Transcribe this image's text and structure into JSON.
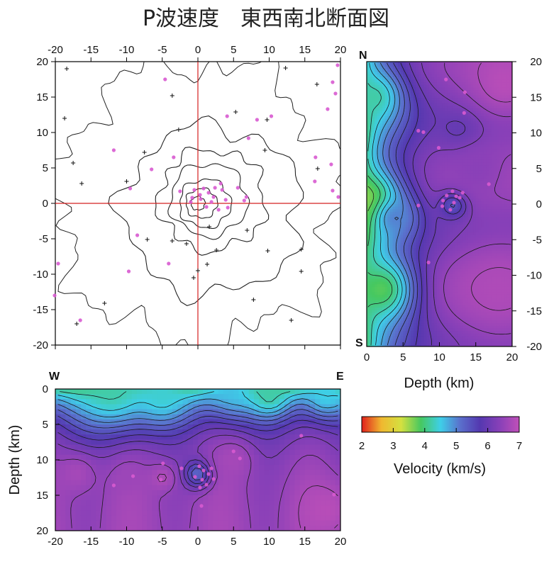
{
  "title": "P波速度　東西南北断面図",
  "colorbar": {
    "label": "Velocity (km/s)",
    "min": 2,
    "max": 7,
    "ticks": [
      "2",
      "3",
      "4",
      "5",
      "6",
      "7"
    ],
    "stops": [
      "#e0201c",
      "#f0b830",
      "#d4e040",
      "#46c860",
      "#3ecfe8",
      "#5a70cc",
      "#5438b0",
      "#8840b8",
      "#c050b8"
    ]
  },
  "chart_data": [
    {
      "type": "map",
      "name": "plan-view",
      "xlim": [
        -20,
        20
      ],
      "ylim": [
        -20,
        20
      ],
      "xticks": [
        "-20",
        "-15",
        "-10",
        "-5",
        "0",
        "5",
        "10",
        "15",
        "20"
      ],
      "yticks": [
        "20",
        "15",
        "10",
        "5",
        "0",
        "-5",
        "-10",
        "-15",
        "-20"
      ],
      "crosshair": {
        "x": 0,
        "y": 0
      },
      "elevation_contours_approx": [
        {
          "cx": 0,
          "cy": 0,
          "r": 1
        },
        {
          "cx": 0.5,
          "cy": 0,
          "r": 2.2
        },
        {
          "cx": 1,
          "cy": 0,
          "r": 3.6
        },
        {
          "cx": 1.5,
          "cy": 0.5,
          "r": 5.4
        },
        {
          "cx": 2,
          "cy": 0.5,
          "r": 7.5
        },
        {
          "cx": 2,
          "cy": -1,
          "r": 12.5
        }
      ],
      "events": [
        [
          0.3,
          1.2
        ],
        [
          0.8,
          2.1
        ],
        [
          -0.5,
          1.9
        ],
        [
          1.5,
          1.5
        ],
        [
          2.2,
          0.9
        ],
        [
          1.9,
          0.2
        ],
        [
          1.2,
          -0.5
        ],
        [
          2.9,
          -0.9
        ],
        [
          0.4,
          0.6
        ],
        [
          -0.8,
          0.8
        ],
        [
          2.4,
          2.2
        ],
        [
          3.4,
          1.9
        ],
        [
          3.9,
          0.5
        ],
        [
          4.2,
          -0.6
        ],
        [
          3.2,
          2.8
        ],
        [
          6.5,
          0.4
        ],
        [
          -2.5,
          1.7
        ],
        [
          -6.5,
          4.8
        ],
        [
          -3.4,
          6.5
        ],
        [
          -9.5,
          2.1
        ],
        [
          -11.8,
          7.5
        ],
        [
          -9.7,
          -9.6
        ],
        [
          -4.1,
          -8.5
        ],
        [
          -8.5,
          -4.5
        ],
        [
          -19.6,
          -8.5
        ],
        [
          -20.1,
          -13
        ],
        [
          -16.5,
          -16.5
        ],
        [
          -4.6,
          17.5
        ],
        [
          4.1,
          12.3
        ],
        [
          7.1,
          9.2
        ],
        [
          8.3,
          11.8
        ],
        [
          10.3,
          12.3
        ],
        [
          16.5,
          6.5
        ],
        [
          16.4,
          3.1
        ],
        [
          18.7,
          5.5
        ],
        [
          18.9,
          1.8
        ],
        [
          19.7,
          0.9
        ],
        [
          18.2,
          13.3
        ],
        [
          19.3,
          15.5
        ],
        [
          19.6,
          19.5
        ],
        [
          18.9,
          17.1
        ],
        [
          6.8,
          0.9
        ],
        [
          5.6,
          2.2
        ],
        [
          -1,
          0.2
        ]
      ],
      "stations": [
        [
          -18.4,
          19
        ],
        [
          -18.7,
          12
        ],
        [
          -17,
          -17
        ],
        [
          -13.1,
          -14.1
        ],
        [
          -3.6,
          -5.3
        ],
        [
          -7.1,
          -5.1
        ],
        [
          -2.7,
          10.4
        ],
        [
          -3.6,
          15.2
        ],
        [
          -10,
          3.1
        ],
        [
          1.3,
          -8.6
        ],
        [
          1.6,
          -3.3
        ],
        [
          2.6,
          -6.6
        ],
        [
          6.9,
          -3.8
        ],
        [
          9.8,
          -6.7
        ],
        [
          7.8,
          -13.6
        ],
        [
          14.5,
          -6.5
        ],
        [
          13.1,
          -16.5
        ],
        [
          5.3,
          12.9
        ],
        [
          9.7,
          11.8
        ],
        [
          9.4,
          7.5
        ],
        [
          16.7,
          16.8
        ],
        [
          16.8,
          4.9
        ],
        [
          14.5,
          -9.6
        ],
        [
          -0.6,
          -10.5
        ],
        [
          -1.6,
          -5.7
        ],
        [
          0,
          -9.5
        ],
        [
          -7.5,
          7.2
        ],
        [
          -17.5,
          5.7
        ],
        [
          12.3,
          19.1
        ],
        [
          -16.3,
          2.8
        ]
      ]
    },
    {
      "type": "heatmap",
      "name": "north-south-section",
      "xlabel": "Depth (km)",
      "xlim": [
        0,
        20
      ],
      "ylim": [
        -20,
        20
      ],
      "xticks": [
        "0",
        "5",
        "10",
        "15",
        "20"
      ],
      "yticks": [
        "20",
        "15",
        "10",
        "5",
        "0",
        "-5",
        "-10",
        "-15",
        "-20"
      ],
      "corner_labels": {
        "top": "N",
        "bottom": "S"
      },
      "velocity_field": [
        {
          "x": 0,
          "y": 0,
          "v": 3.5,
          "r": 5
        },
        {
          "x": 1,
          "y": 15,
          "v": 4.2,
          "r": 4
        },
        {
          "x": 2,
          "y": -12,
          "v": 3.8,
          "r": 5
        },
        {
          "x": 4,
          "y": -2,
          "v": 5.0,
          "r": 3
        },
        {
          "x": 12,
          "y": 0,
          "v": 5.2,
          "r": 2
        },
        {
          "x": 13,
          "y": 10,
          "v": 5.8,
          "r": 3
        },
        {
          "x": 19,
          "y": 17,
          "v": 6.9,
          "r": 5
        },
        {
          "x": 18,
          "y": -12,
          "v": 6.8,
          "r": 7
        },
        {
          "x": 15,
          "y": 5,
          "v": 6.4,
          "r": 5
        }
      ],
      "events": [
        [
          10.5,
          0.5
        ],
        [
          11,
          1.2
        ],
        [
          11.8,
          1.8
        ],
        [
          12.3,
          1.1
        ],
        [
          12.8,
          0.9
        ],
        [
          13.2,
          1.6
        ],
        [
          12,
          0.2
        ],
        [
          11.5,
          -0.8
        ],
        [
          10.4,
          -0.3
        ],
        [
          7.1,
          10.3
        ],
        [
          7.8,
          10.1
        ],
        [
          7.1,
          -0.2
        ],
        [
          8.5,
          -8.2
        ],
        [
          13.5,
          15.7
        ],
        [
          9.9,
          7.9
        ],
        [
          16.8,
          2.8
        ],
        [
          13.4,
          12.8
        ],
        [
          10.9,
          17.5
        ]
      ]
    },
    {
      "type": "heatmap",
      "name": "west-east-section",
      "ylabel": "Depth (km)",
      "xlim": [
        -20,
        20
      ],
      "ylim": [
        0,
        20
      ],
      "xticks": [
        "-20",
        "-15",
        "-10",
        "-5",
        "0",
        "5",
        "10",
        "15",
        "20"
      ],
      "yticks": [
        "0",
        "5",
        "10",
        "15",
        "20"
      ],
      "corner_labels": {
        "left": "W",
        "right": "E"
      },
      "velocity_field": [
        {
          "x": -12,
          "y": 0,
          "v": 4.2,
          "r": 6
        },
        {
          "x": -5,
          "y": 1,
          "v": 4.4,
          "r": 4
        },
        {
          "x": 5,
          "y": 0,
          "v": 4.6,
          "r": 4
        },
        {
          "x": 10,
          "y": 1,
          "v": 4.2,
          "r": 3
        },
        {
          "x": 18,
          "y": 1,
          "v": 4.5,
          "r": 3
        },
        {
          "x": 0,
          "y": 12,
          "v": 5.2,
          "r": 2
        },
        {
          "x": -10,
          "y": 12.5,
          "v": 6.6,
          "r": 2
        },
        {
          "x": -5,
          "y": 12.5,
          "v": 6.8,
          "r": 2
        },
        {
          "x": -17,
          "y": 12,
          "v": 6.7,
          "r": 3
        },
        {
          "x": 5,
          "y": 10,
          "v": 6.7,
          "r": 3
        },
        {
          "x": 18,
          "y": 17,
          "v": 6.9,
          "r": 4
        }
      ],
      "events": [
        [
          0.2,
          10.9
        ],
        [
          0.8,
          11.5
        ],
        [
          1.5,
          12
        ],
        [
          0.6,
          12.8
        ],
        [
          1.2,
          13.5
        ],
        [
          0.3,
          13.9
        ],
        [
          -0.4,
          12.4
        ],
        [
          1.9,
          11.2
        ],
        [
          2.2,
          12.7
        ],
        [
          -4.9,
          10.5
        ],
        [
          -5.2,
          12.8
        ],
        [
          5,
          8.8
        ],
        [
          5.9,
          9.8
        ],
        [
          -9.1,
          12.3
        ],
        [
          -11.8,
          13.6
        ],
        [
          14.5,
          6.6
        ],
        [
          19.1,
          14.9
        ],
        [
          0.5,
          16.5
        ],
        [
          -2.3,
          11.2
        ]
      ]
    }
  ]
}
